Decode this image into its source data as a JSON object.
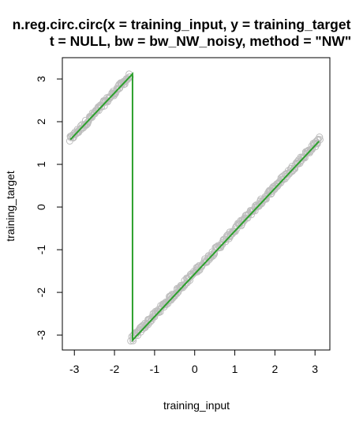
{
  "chart_data": {
    "type": "scatter",
    "title_line1": "n.reg.circ.circ(x = training_input, y = training_target",
    "title_line2": "t = NULL, bw = bw_NW_noisy, method = \"NW\"",
    "xlabel": "training_input",
    "ylabel": "training_target",
    "xlim": [
      -3.3,
      3.37
    ],
    "ylim": [
      -3.35,
      3.5
    ],
    "x_ticks": [
      -3,
      -2,
      -1,
      0,
      1,
      2,
      3
    ],
    "y_ticks": [
      -3,
      -2,
      -1,
      0,
      1,
      2,
      3
    ],
    "x_tick_labels": [
      "-3",
      "-2",
      "-1",
      "0",
      "1",
      "2",
      "3"
    ],
    "y_tick_labels": [
      "-3",
      "-2",
      "-1",
      "0",
      "1",
      "2",
      "3"
    ],
    "series": [
      {
        "kind": "points",
        "color": "#bebebe",
        "marker": "open-circle",
        "segments": [
          {
            "x_start": -3.12,
            "x_end": -1.62,
            "y_at_start": 1.57,
            "slope": 1.0,
            "noise": 0.07
          },
          {
            "x_start": -1.58,
            "x_end": 3.12,
            "y_at_start": -3.11,
            "slope": 1.0,
            "noise": 0.07
          }
        ]
      },
      {
        "kind": "line",
        "color": "#2ca02c",
        "x": [
          -3.1,
          -1.55,
          -1.55,
          3.1
        ],
        "y": [
          1.58,
          3.12,
          -3.12,
          1.54
        ]
      }
    ],
    "grid": false,
    "legend": "none"
  }
}
